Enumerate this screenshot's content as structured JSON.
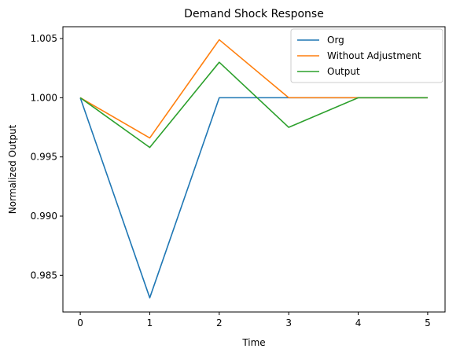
{
  "chart_data": {
    "type": "line",
    "title": "Demand Shock Response",
    "xlabel": "Time",
    "ylabel": "Normalized Output",
    "x": [
      0,
      1,
      2,
      3,
      4,
      5
    ],
    "xlim": [
      -0.25,
      5.25
    ],
    "ylim": [
      0.9819,
      1.006
    ],
    "xticks": [
      0,
      1,
      2,
      3,
      4,
      5
    ],
    "yticks": [
      0.985,
      0.99,
      0.995,
      1.0,
      1.005
    ],
    "ytick_labels": [
      "0.985",
      "0.990",
      "0.995",
      "1.000",
      "1.005"
    ],
    "grid": false,
    "legend_position": "top-right",
    "series": [
      {
        "name": "Org",
        "color": "#1f77b4",
        "values": [
          1.0,
          0.9831,
          1.0,
          1.0,
          1.0,
          1.0
        ]
      },
      {
        "name": "Without Adjustment",
        "color": "#ff7f0e",
        "values": [
          1.0,
          0.9966,
          1.0049,
          1.0,
          1.0,
          1.0
        ]
      },
      {
        "name": "Output",
        "color": "#2ca02c",
        "values": [
          1.0,
          0.9958,
          1.003,
          0.9975,
          1.0,
          1.0
        ]
      }
    ]
  }
}
